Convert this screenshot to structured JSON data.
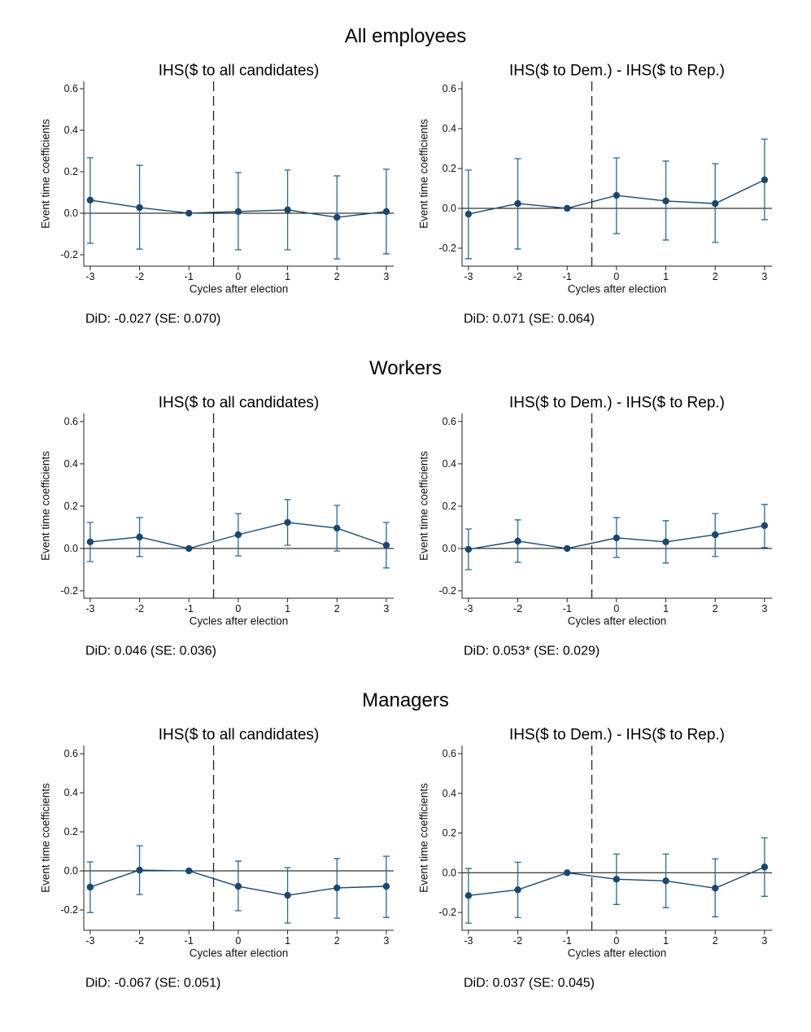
{
  "figure": {
    "sections": [
      {
        "title": "All employees"
      },
      {
        "title": "Workers"
      },
      {
        "title": "Managers"
      }
    ]
  },
  "colors": {
    "series": "#1a476f",
    "ci": "#2d6892",
    "axis": "#222222",
    "reference": "#000000"
  },
  "chart_data": [
    {
      "type": "line",
      "title": "IHS($ to all candidates)",
      "xlabel": "Cycles after election",
      "ylabel": "Event time coefficients",
      "x": [
        -3,
        -2,
        -1,
        0,
        1,
        2,
        3
      ],
      "x_tick_labels": [
        "-3",
        "-2",
        "-1",
        "0",
        "1",
        "2",
        "3"
      ],
      "y_ticks": [
        -0.2,
        0,
        0.2,
        0.4,
        0.6
      ],
      "y_tick_labels": [
        "-0.2",
        "0.0",
        "0.2",
        "0.4",
        "0.6"
      ],
      "xlim": [
        -3.13,
        3.15
      ],
      "ylim": [
        -0.255,
        0.635
      ],
      "reference_x": -0.5,
      "reference_y": 0,
      "grid": false,
      "series": [
        {
          "values": [
            0.063,
            0.027,
            0,
            0.008,
            0.016,
            -0.02,
            0.008
          ],
          "ci_low": [
            -0.145,
            -0.173,
            null,
            -0.176,
            -0.176,
            -0.22,
            -0.196
          ],
          "ci_high": [
            0.267,
            0.231,
            null,
            0.196,
            0.208,
            0.18,
            0.212
          ]
        }
      ],
      "annotation": "DiD: -0.027 (SE: 0.070)"
    },
    {
      "type": "line",
      "title": "IHS($ to Dem.) - IHS($ to Rep.)",
      "xlabel": "Cycles after election",
      "ylabel": "Event time coefficients",
      "x": [
        -3,
        -2,
        -1,
        0,
        1,
        2,
        3
      ],
      "x_tick_labels": [
        "-3",
        "-2",
        "-1",
        "0",
        "1",
        "2",
        "3"
      ],
      "y_ticks": [
        -0.2,
        0,
        0.2,
        0.4,
        0.6
      ],
      "y_tick_labels": [
        "-0.2",
        "0.0",
        "0.2",
        "0.4",
        "0.6"
      ],
      "xlim": [
        -3.13,
        3.15
      ],
      "ylim": [
        -0.29,
        0.637
      ],
      "reference_x": -0.5,
      "reference_y": 0,
      "grid": false,
      "series": [
        {
          "values": [
            -0.029,
            0.024,
            0,
            0.065,
            0.037,
            0.024,
            0.143
          ],
          "ci_low": [
            -0.253,
            -0.204,
            null,
            -0.127,
            -0.159,
            -0.171,
            -0.057
          ],
          "ci_high": [
            0.192,
            0.249,
            null,
            0.253,
            0.237,
            0.224,
            0.347
          ]
        }
      ],
      "annotation": "DiD: 0.071 (SE: 0.064)"
    },
    {
      "type": "line",
      "title": "IHS($ to all candidates)",
      "xlabel": "Cycles after election",
      "ylabel": "Event time coefficients",
      "x": [
        -3,
        -2,
        -1,
        0,
        1,
        2,
        3
      ],
      "x_tick_labels": [
        "-3",
        "-2",
        "-1",
        "0",
        "1",
        "2",
        "3"
      ],
      "y_ticks": [
        -0.2,
        0,
        0.2,
        0.4,
        0.6
      ],
      "y_tick_labels": [
        "-0.2",
        "0.0",
        "0.2",
        "0.4",
        "0.6"
      ],
      "xlim": [
        -3.13,
        3.15
      ],
      "ylim": [
        -0.235,
        0.638
      ],
      "reference_x": -0.5,
      "reference_y": 0,
      "grid": false,
      "series": [
        {
          "values": [
            0.031,
            0.054,
            0,
            0.065,
            0.123,
            0.096,
            0.015
          ],
          "ci_low": [
            -0.062,
            -0.038,
            null,
            -0.035,
            0.015,
            -0.012,
            -0.092
          ],
          "ci_high": [
            0.123,
            0.146,
            null,
            0.165,
            0.231,
            0.204,
            0.123
          ]
        }
      ],
      "annotation": "DiD: 0.046 (SE: 0.036)"
    },
    {
      "type": "line",
      "title": "IHS($ to Dem.) - IHS($ to Rep.)",
      "xlabel": "Cycles after election",
      "ylabel": "Event time coefficients",
      "x": [
        -3,
        -2,
        -1,
        0,
        1,
        2,
        3
      ],
      "x_tick_labels": [
        "-3",
        "-2",
        "-1",
        "0",
        "1",
        "2",
        "3"
      ],
      "y_ticks": [
        -0.2,
        0,
        0.2,
        0.4,
        0.6
      ],
      "y_tick_labels": [
        "-0.2",
        "0.0",
        "0.2",
        "0.4",
        "0.6"
      ],
      "xlim": [
        -3.13,
        3.15
      ],
      "ylim": [
        -0.235,
        0.638
      ],
      "reference_x": -0.5,
      "reference_y": 0,
      "grid": false,
      "series": [
        {
          "values": [
            -0.004,
            0.035,
            0,
            0.05,
            0.031,
            0.065,
            0.108
          ],
          "ci_low": [
            -0.1,
            -0.065,
            null,
            -0.042,
            -0.069,
            -0.038,
            0.004
          ],
          "ci_high": [
            0.092,
            0.135,
            null,
            0.146,
            0.131,
            0.165,
            0.208
          ]
        }
      ],
      "annotation": "DiD: 0.053* (SE: 0.029)"
    },
    {
      "type": "line",
      "title": "IHS($ to all candidates)",
      "xlabel": "Cycles after election",
      "ylabel": "Event time coefficients",
      "x": [
        -3,
        -2,
        -1,
        0,
        1,
        2,
        3
      ],
      "x_tick_labels": [
        "-3",
        "-2",
        "-1",
        "0",
        "1",
        "2",
        "3"
      ],
      "y_ticks": [
        -0.2,
        0,
        0.2,
        0.4,
        0.6
      ],
      "y_tick_labels": [
        "-0.2",
        "0.0",
        "0.2",
        "0.4",
        "0.6"
      ],
      "xlim": [
        -3.13,
        3.15
      ],
      "ylim": [
        -0.304,
        0.642
      ],
      "reference_x": -0.5,
      "reference_y": 0,
      "grid": false,
      "series": [
        {
          "values": [
            -0.083,
            0.004,
            0,
            -0.079,
            -0.125,
            -0.087,
            -0.079
          ],
          "ci_low": [
            -0.213,
            -0.121,
            null,
            -0.204,
            -0.267,
            -0.242,
            -0.238
          ],
          "ci_high": [
            0.046,
            0.129,
            null,
            0.05,
            0.017,
            0.063,
            0.075
          ]
        }
      ],
      "annotation": "DiD: -0.067 (SE: 0.051)"
    },
    {
      "type": "line",
      "title": "IHS($ to Dem.) - IHS($ to Rep.)",
      "xlabel": "Cycles after election",
      "ylabel": "Event time coefficients",
      "x": [
        -3,
        -2,
        -1,
        0,
        1,
        2,
        3
      ],
      "x_tick_labels": [
        "-3",
        "-2",
        "-1",
        "0",
        "1",
        "2",
        "3"
      ],
      "y_ticks": [
        -0.2,
        0,
        0.2,
        0.4,
        0.6
      ],
      "y_tick_labels": [
        "-0.2",
        "0.0",
        "0.2",
        "0.4",
        "0.6"
      ],
      "xlim": [
        -3.13,
        3.15
      ],
      "ylim": [
        -0.29,
        0.641
      ],
      "reference_x": -0.5,
      "reference_y": 0,
      "grid": false,
      "series": [
        {
          "values": [
            -0.115,
            -0.086,
            0,
            -0.033,
            -0.041,
            -0.078,
            0.029
          ],
          "ci_low": [
            -0.254,
            -0.226,
            null,
            -0.16,
            -0.176,
            -0.222,
            -0.119
          ],
          "ci_high": [
            0.021,
            0.053,
            null,
            0.094,
            0.094,
            0.07,
            0.176
          ]
        }
      ],
      "annotation": "DiD: 0.037 (SE: 0.045)"
    }
  ]
}
